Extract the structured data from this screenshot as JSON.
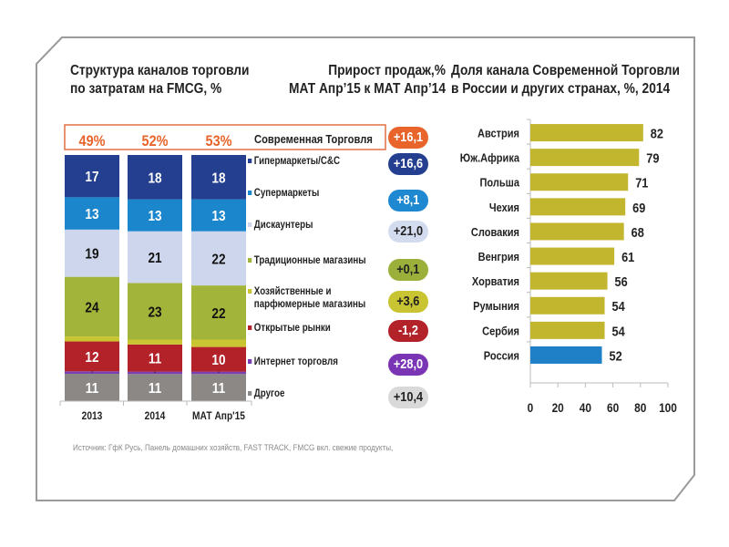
{
  "titles": {
    "left_line1": "Структура каналов торговли",
    "left_line2": "по затратам на FMCG, %",
    "mid_line1": "Прирост продаж,%",
    "mid_line2": "МАТ Апр’15 к  МАТ Апр’14",
    "right_line1": "Доля канала Современной Торговли",
    "right_line2": "в России и других странах, %, 2014"
  },
  "modern_trade": {
    "label": "Современная Торговля",
    "shares": [
      "49%",
      "52%",
      "53%"
    ],
    "growth": "+16,1",
    "color": "#e8642a"
  },
  "source": "Источник: ГфК Русь, Панель домашних хозяйств, FAST TRACK, FMCG вкл. свежие продукты,",
  "chart_data": [
    {
      "type": "bar",
      "stacked": true,
      "title": "Структура каналов торговли по затратам на FMCG, %",
      "categories": [
        "2013",
        "2014",
        "МАТ Апр'15"
      ],
      "series": [
        {
          "name": "Другое",
          "values": [
            11,
            11,
            11
          ],
          "color": "#8c8886",
          "label_color": "#ffffff",
          "growth": "+10,4",
          "growth_bg": "#d9d9d9",
          "growth_fg": "#222222"
        },
        {
          "name": "Интернет торговля",
          "values": [
            1,
            1,
            1
          ],
          "color": "#7a3fb0",
          "label_color": "#111111",
          "growth": "+28,0",
          "growth_bg": "#7a35b5",
          "growth_fg": "#ffffff"
        },
        {
          "name": "Открытые рынки",
          "values": [
            12,
            11,
            10
          ],
          "color": "#b22228",
          "label_color": "#ffffff",
          "growth": "-1,2",
          "growth_bg": "#b22228",
          "growth_fg": "#ffffff"
        },
        {
          "name": "Хозяйственные и парфюмерные магазины",
          "values": [
            2,
            2,
            3
          ],
          "color": "#c9c532",
          "label_color": "#111111",
          "growth": "+3,6",
          "growth_bg": "#c9c432",
          "growth_fg": "#222222"
        },
        {
          "name": "Традиционные  магазины",
          "values": [
            24,
            23,
            22
          ],
          "color": "#a2b43a",
          "label_color": "#111111",
          "growth": "+0,1",
          "growth_bg": "#9bb03a",
          "growth_fg": "#222222"
        },
        {
          "name": "Дискаунтеры",
          "values": [
            19,
            21,
            22
          ],
          "color": "#cdd6ec",
          "label_color": "#111111",
          "growth": "+21,0",
          "growth_bg": "#d3dcef",
          "growth_fg": "#222222"
        },
        {
          "name": "Супермаркеты",
          "values": [
            13,
            13,
            13
          ],
          "color": "#1c86cc",
          "label_color": "#ffffff",
          "growth": "+8,1",
          "growth_bg": "#1e88d0",
          "growth_fg": "#ffffff"
        },
        {
          "name": "Гипермаркеты/С&С",
          "values": [
            17,
            18,
            18
          ],
          "color": "#243f8f",
          "label_color": "#ffffff",
          "growth": "+16,6",
          "growth_bg": "#243f8f",
          "growth_fg": "#ffffff"
        }
      ],
      "hidden_labels": [
        "Хозяйственные и парфюмерные магазины"
      ],
      "legend": "right"
    },
    {
      "type": "bar",
      "orientation": "horizontal",
      "title": "Доля канала Современной Торговли в России и других странах, %, 2014",
      "categories": [
        "Австрия",
        "Юж.Африка",
        "Польша",
        "Чехия",
        "Словакия",
        "Венгрия",
        "Хорватия",
        "Румыния",
        "Сербия",
        "Россия"
      ],
      "values": [
        82,
        79,
        71,
        69,
        68,
        61,
        56,
        54,
        54,
        52
      ],
      "colors": [
        "#c2b62f",
        "#c2b62f",
        "#c2b62f",
        "#c2b62f",
        "#c2b62f",
        "#c2b62f",
        "#c2b62f",
        "#c2b62f",
        "#c2b62f",
        "#1f80c8"
      ],
      "xlim": [
        0,
        100
      ],
      "xticks": [
        "0",
        "20",
        "40",
        "60",
        "80",
        "100"
      ],
      "grid": false
    }
  ]
}
